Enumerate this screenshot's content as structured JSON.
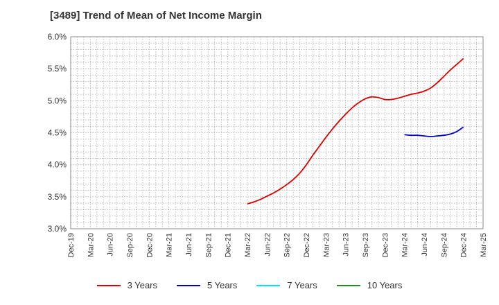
{
  "chart_data": {
    "type": "line",
    "title": "[3489]  Trend of Mean of Net Income Margin",
    "xlabel": "",
    "ylabel": "",
    "x_tick_labels": [
      "Dec-19",
      "Mar-20",
      "Jun-20",
      "Sep-20",
      "Dec-20",
      "Mar-21",
      "Jun-21",
      "Sep-21",
      "Dec-21",
      "Mar-22",
      "Jun-22",
      "Sep-22",
      "Dec-22",
      "Mar-23",
      "Jun-23",
      "Sep-23",
      "Dec-23",
      "Mar-24",
      "Jun-24",
      "Sep-24",
      "Dec-24",
      "Mar-25"
    ],
    "y_tick_labels": [
      "3.0%",
      "3.5%",
      "4.0%",
      "4.5%",
      "5.0%",
      "5.5%",
      "6.0%"
    ],
    "ylim": [
      3.0,
      6.0
    ],
    "grid": true,
    "legend_position": "bottom",
    "series": [
      {
        "name": "3 Years",
        "color": "#dd0000",
        "points": [
          [
            "Mar-22",
            3.39
          ],
          [
            "Apr-22",
            3.42
          ],
          [
            "May-22",
            3.46
          ],
          [
            "Jun-22",
            3.51
          ],
          [
            "Jul-22",
            3.56
          ],
          [
            "Aug-22",
            3.62
          ],
          [
            "Sep-22",
            3.69
          ],
          [
            "Oct-22",
            3.77
          ],
          [
            "Nov-22",
            3.87
          ],
          [
            "Dec-22",
            4.0
          ],
          [
            "Jan-23",
            4.15
          ],
          [
            "Feb-23",
            4.29
          ],
          [
            "Mar-23",
            4.43
          ],
          [
            "Apr-23",
            4.56
          ],
          [
            "May-23",
            4.68
          ],
          [
            "Jun-23",
            4.79
          ],
          [
            "Jul-23",
            4.89
          ],
          [
            "Aug-23",
            4.97
          ],
          [
            "Sep-23",
            5.03
          ],
          [
            "Oct-23",
            5.06
          ],
          [
            "Nov-23",
            5.05
          ],
          [
            "Dec-23",
            5.02
          ],
          [
            "Jan-24",
            5.02
          ],
          [
            "Feb-24",
            5.04
          ],
          [
            "Mar-24",
            5.07
          ],
          [
            "Apr-24",
            5.1
          ],
          [
            "May-24",
            5.12
          ],
          [
            "Jun-24",
            5.15
          ],
          [
            "Jul-24",
            5.2
          ],
          [
            "Aug-24",
            5.28
          ],
          [
            "Sep-24",
            5.38
          ],
          [
            "Oct-24",
            5.48
          ],
          [
            "Nov-24",
            5.57
          ],
          [
            "Dec-24",
            5.66
          ]
        ]
      },
      {
        "name": "5 Years",
        "color": "#0000cc",
        "points": [
          [
            "Mar-24",
            4.47
          ],
          [
            "Apr-24",
            4.46
          ],
          [
            "May-24",
            4.46
          ],
          [
            "Jun-24",
            4.45
          ],
          [
            "Jul-24",
            4.44
          ],
          [
            "Aug-24",
            4.45
          ],
          [
            "Sep-24",
            4.46
          ],
          [
            "Oct-24",
            4.48
          ],
          [
            "Nov-24",
            4.52
          ],
          [
            "Dec-24",
            4.59
          ]
        ]
      },
      {
        "name": "7 Years",
        "color": "#00e5ee",
        "points": []
      },
      {
        "name": "10 Years",
        "color": "#228b22",
        "points": []
      }
    ]
  }
}
